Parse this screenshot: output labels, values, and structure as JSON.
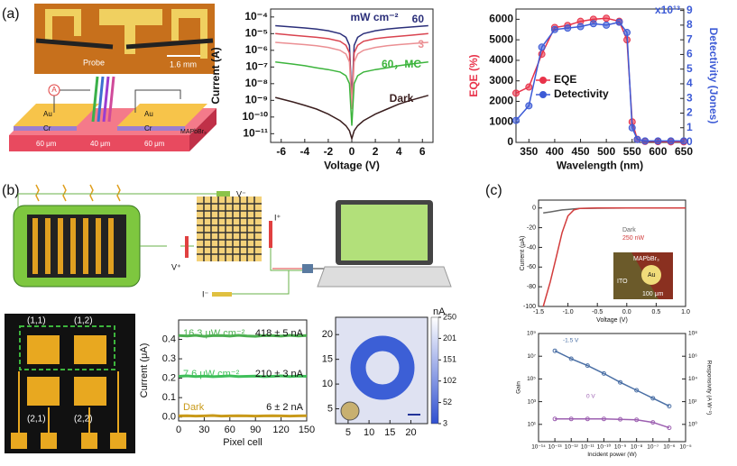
{
  "figure": {
    "panels": [
      "(a)",
      "(b)",
      "(c)"
    ],
    "a_photo": [
      "Probe",
      "1.6 mm"
    ],
    "a_device": [
      "A",
      "Au",
      "Cr",
      "Au",
      "Cr",
      "MAPbBr₃",
      "60 μm",
      "40 μm",
      "60 μm"
    ],
    "b_circuit": [
      "V⁻",
      "V⁺",
      "I⁺",
      "I⁻"
    ],
    "b_array": [
      "(1,1)",
      "(1,2)",
      "(2,1)",
      "(2,2)"
    ],
    "c_inset": [
      "MAPbBr₃",
      "ITO",
      "Au",
      "100 μm"
    ]
  },
  "chart_data": [
    {
      "type": "line",
      "xlabel": "Voltage (V)",
      "ylabel": "Current (A)",
      "yscale": "log",
      "xlim": [
        -6.9,
        6.9
      ],
      "xticks": [
        -6,
        -4,
        -2,
        0,
        2,
        4,
        6
      ],
      "ylim": [
        3e-12,
        0.0003
      ],
      "yticks": [
        {
          "value": 1e-11,
          "label": "10⁻¹¹"
        },
        {
          "value": 1e-10,
          "label": "10⁻¹⁰"
        },
        {
          "value": 1e-09,
          "label": "10⁻⁹"
        },
        {
          "value": 1e-08,
          "label": "10⁻⁸"
        },
        {
          "value": 1e-07,
          "label": "10⁻⁷"
        },
        {
          "value": 1e-06,
          "label": "10⁻⁶"
        },
        {
          "value": 1e-05,
          "label": "10⁻⁵"
        },
        {
          "value": 0.0001,
          "label": "10⁻⁴"
        }
      ],
      "x": [
        -6.5,
        -5,
        -4,
        -3,
        -2,
        -1,
        -0.5,
        -0.2,
        0,
        0.2,
        0.5,
        1,
        2,
        3,
        4,
        5,
        6.5
      ],
      "series": [
        {
          "name": "60",
          "color": "#2b2f7a",
          "values": [
            3e-05,
            2.5e-05,
            2.2e-05,
            1.9e-05,
            1.5e-05,
            1e-05,
            6e-06,
            2e-06,
            1e-09,
            2e-06,
            6e-06,
            1e-05,
            1.5e-05,
            1.9e-05,
            2.2e-05,
            2.5e-05,
            3e-05
          ]
        },
        {
          "color": "#d9434f",
          "values": [
            1e-05,
            8e-06,
            7e-06,
            6e-06,
            5e-06,
            3.5e-06,
            2e-06,
            7e-07,
            5e-10,
            7e-07,
            2e-06,
            3.5e-06,
            5e-06,
            6e-06,
            7e-06,
            8e-06,
            1e-05
          ]
        },
        {
          "name": "3",
          "color": "#eb8f93",
          "values": [
            3e-06,
            2.5e-06,
            2.2e-06,
            1.9e-06,
            1.5e-06,
            1e-06,
            6e-07,
            2e-07,
            3e-10,
            2e-07,
            6e-07,
            1e-06,
            1.5e-06,
            1.9e-06,
            2.2e-06,
            2.5e-06,
            3e-06
          ]
        },
        {
          "name": "60，MC",
          "color": "#3cb43c",
          "values": [
            2e-07,
            1.5e-07,
            1.2e-07,
            9e-08,
            7e-08,
            5e-08,
            3e-08,
            1e-08,
            3e-11,
            1e-08,
            3e-08,
            5e-08,
            7e-08,
            9e-08,
            1.2e-07,
            1.5e-07,
            2e-07
          ]
        },
        {
          "name": "Dark",
          "color": "#3a1e1e",
          "values": [
            1.5e-09,
            8e-10,
            5e-10,
            3e-10,
            1.5e-10,
            6e-11,
            3e-11,
            1.5e-11,
            5e-12,
            1.5e-11,
            3e-11,
            6e-11,
            1.5e-10,
            3e-10,
            6e-10,
            1e-09,
            2e-09
          ]
        }
      ],
      "annotations": [
        "mW cm⁻²"
      ]
    },
    {
      "type": "line",
      "markers": true,
      "xlabel": "Wavelength (nm)",
      "ylabel": "EQE (%)",
      "y2label": "Detectivity (Jones)",
      "xlim": [
        325,
        650
      ],
      "xticks": [
        350,
        400,
        450,
        500,
        550,
        600,
        650
      ],
      "ylim": [
        0,
        6500
      ],
      "yticks": [
        0,
        1000,
        2000,
        3000,
        4000,
        5000,
        6000
      ],
      "y2lim": [
        0,
        9.1
      ],
      "y2ticks": [
        0,
        1,
        2,
        3,
        4,
        5,
        6,
        7,
        8,
        9
      ],
      "legend": "center left",
      "x": [
        325,
        350,
        375,
        400,
        425,
        450,
        475,
        500,
        525,
        540,
        550,
        560,
        575,
        600,
        625,
        650
      ],
      "series": [
        {
          "name": "EQE",
          "color": "#e8334a",
          "values": [
            2400,
            2700,
            4300,
            5600,
            5700,
            5900,
            6000,
            6050,
            5900,
            5000,
            1000,
            150,
            50,
            40,
            30,
            30
          ]
        },
        {
          "name": "Detectivity",
          "color": "#3d5bd6",
          "axis": "y2",
          "values": [
            1.5,
            2.5,
            6.5,
            7.7,
            7.8,
            7.9,
            8.1,
            8.0,
            8.2,
            7.5,
            1.0,
            0.2,
            0.1,
            0.1,
            0.1,
            0.1
          ]
        }
      ],
      "annotations": [
        "x10¹³"
      ]
    },
    {
      "type": "line",
      "xlabel": "Pixel cell",
      "ylabel": "Current (μA)",
      "xlim": [
        0,
        150
      ],
      "xticks": [
        0,
        30,
        60,
        90,
        120,
        150
      ],
      "ylim": [
        -0.02,
        0.5
      ],
      "yticks": [
        {
          "value": 0,
          "label": "0.0"
        },
        0.1,
        0.2,
        0.3,
        0.4
      ],
      "x": [
        0,
        10,
        20,
        30,
        40,
        50,
        60,
        70,
        80,
        90,
        100,
        110,
        120,
        130,
        140,
        150
      ],
      "series": [
        {
          "name": "16.3 μW cm⁻²",
          "color": "#4caf50",
          "values": [
            0.42,
            0.418,
            0.421,
            0.416,
            0.419,
            0.42,
            0.417,
            0.421,
            0.418,
            0.416,
            0.42,
            0.419,
            0.417,
            0.421,
            0.418,
            0.42
          ]
        },
        {
          "name": "7.6 μW cm⁻²",
          "color": "#3fbf5a",
          "values": [
            0.21,
            0.212,
            0.209,
            0.211,
            0.208,
            0.21,
            0.212,
            0.209,
            0.21,
            0.211,
            0.208,
            0.21,
            0.212,
            0.209,
            0.211,
            0.21
          ]
        },
        {
          "name": "Dark",
          "color": "#c99a1a",
          "values": [
            0.006,
            0.007,
            0.005,
            0.006,
            0.008,
            0.005,
            0.006,
            0.007,
            0.006,
            0.005,
            0.006,
            0.007,
            0.006,
            0.005,
            0.006,
            0.007
          ]
        }
      ],
      "annotations": [
        "418 ± 5 nA",
        "210 ± 3 nA",
        "6 ± 2 nA"
      ]
    },
    {
      "type": "image",
      "xlim": [
        2,
        24
      ],
      "xticks": [
        5,
        10,
        15,
        20
      ],
      "ylim": [
        2,
        23.5
      ],
      "yticks": [
        5,
        10,
        15,
        20
      ],
      "colorbar": {
        "label": "nA",
        "lim": [
          3,
          250
        ],
        "ticks": [
          3,
          52,
          102,
          151,
          201,
          250
        ],
        "colors": [
          "#2f4fd0",
          "#ffffff"
        ]
      }
    },
    {
      "type": "line",
      "xlabel": "Voltage (V)",
      "ylabel": "Current (μA)",
      "xlim": [
        -1.5,
        1.0
      ],
      "xticks": [
        {
          "value": -1.5,
          "label": "-1.5"
        },
        {
          "value": -1,
          "label": "-1.0"
        },
        {
          "value": -0.5,
          "label": "-0.5"
        },
        {
          "value": 0,
          "label": "0.0"
        },
        {
          "value": 0.5,
          "label": "0.5"
        },
        {
          "value": 1,
          "label": "1.0"
        }
      ],
      "ylim": [
        -100,
        8
      ],
      "yticks": [
        -100,
        -80,
        -60,
        -40,
        -20,
        0
      ],
      "x": [
        -1.42,
        -1.3,
        -1.2,
        -1.1,
        -1.0,
        -0.9,
        -0.8,
        -0.5,
        0,
        0.5,
        1.0
      ],
      "series": [
        {
          "name": "Dark",
          "color": "#666666",
          "values": [
            -5,
            -4,
            -3,
            -2,
            -1.5,
            -1,
            -0.5,
            -0.2,
            0,
            0,
            0
          ]
        },
        {
          "name": "250 nW",
          "color": "#d23c3c",
          "values": [
            -100,
            -75,
            -50,
            -25,
            -8,
            -2,
            -0.5,
            0,
            0,
            0,
            0
          ]
        }
      ]
    },
    {
      "type": "line",
      "markers": true,
      "xlabel": "Incident power (W)",
      "ylabel": "Gain",
      "y2label": "Responsivity (A W⁻¹)",
      "xscale": "log",
      "yscale": "log",
      "y2scale": "log",
      "xlim": [
        1e-14,
        1e-05
      ],
      "xticks": [
        {
          "value": 1e-14,
          "label": "10⁻¹⁴"
        },
        {
          "value": 1e-13,
          "label": "10⁻¹³"
        },
        {
          "value": 1e-12,
          "label": "10⁻¹²"
        },
        {
          "value": 1e-11,
          "label": "10⁻¹¹"
        },
        {
          "value": 1e-10,
          "label": "10⁻¹⁰"
        },
        {
          "value": 1e-09,
          "label": "10⁻⁹"
        },
        {
          "value": 1e-08,
          "label": "10⁻⁸"
        },
        {
          "value": 1e-07,
          "label": "10⁻⁷"
        },
        {
          "value": 1e-06,
          "label": "10⁻⁶"
        },
        {
          "value": 1e-05,
          "label": "10⁻⁵"
        }
      ],
      "ylim": [
        0.3,
        1000000000.0
      ],
      "yticks": [
        {
          "value": 10,
          "label": "10¹"
        },
        {
          "value": 1000,
          "label": "10³"
        },
        {
          "value": 100000,
          "label": "10⁵"
        },
        {
          "value": 10000000,
          "label": "10⁷"
        },
        {
          "value": 1000000000,
          "label": "10⁹"
        }
      ],
      "y2lim": [
        0.03,
        100000000.0
      ],
      "y2ticks": [
        {
          "value": 1,
          "label": "10⁰"
        },
        {
          "value": 100,
          "label": "10²"
        },
        {
          "value": 10000,
          "label": "10⁴"
        },
        {
          "value": 1000000,
          "label": "10⁶"
        },
        {
          "value": 100000000,
          "label": "10⁸"
        }
      ],
      "x": [
        1e-13,
        1e-12,
        1e-11,
        1e-10,
        1e-09,
        1e-08,
        1e-07,
        1e-06
      ],
      "series": [
        {
          "name": "-1.5 V",
          "color": "#4a6fa5",
          "values": [
            30000000,
            6000000,
            1500000,
            300000,
            50000,
            10000,
            2000,
            400
          ]
        },
        {
          "name": "0 V",
          "color": "#9c5fb0",
          "values": [
            30,
            30,
            30,
            30,
            28,
            25,
            15,
            5
          ]
        }
      ]
    }
  ]
}
